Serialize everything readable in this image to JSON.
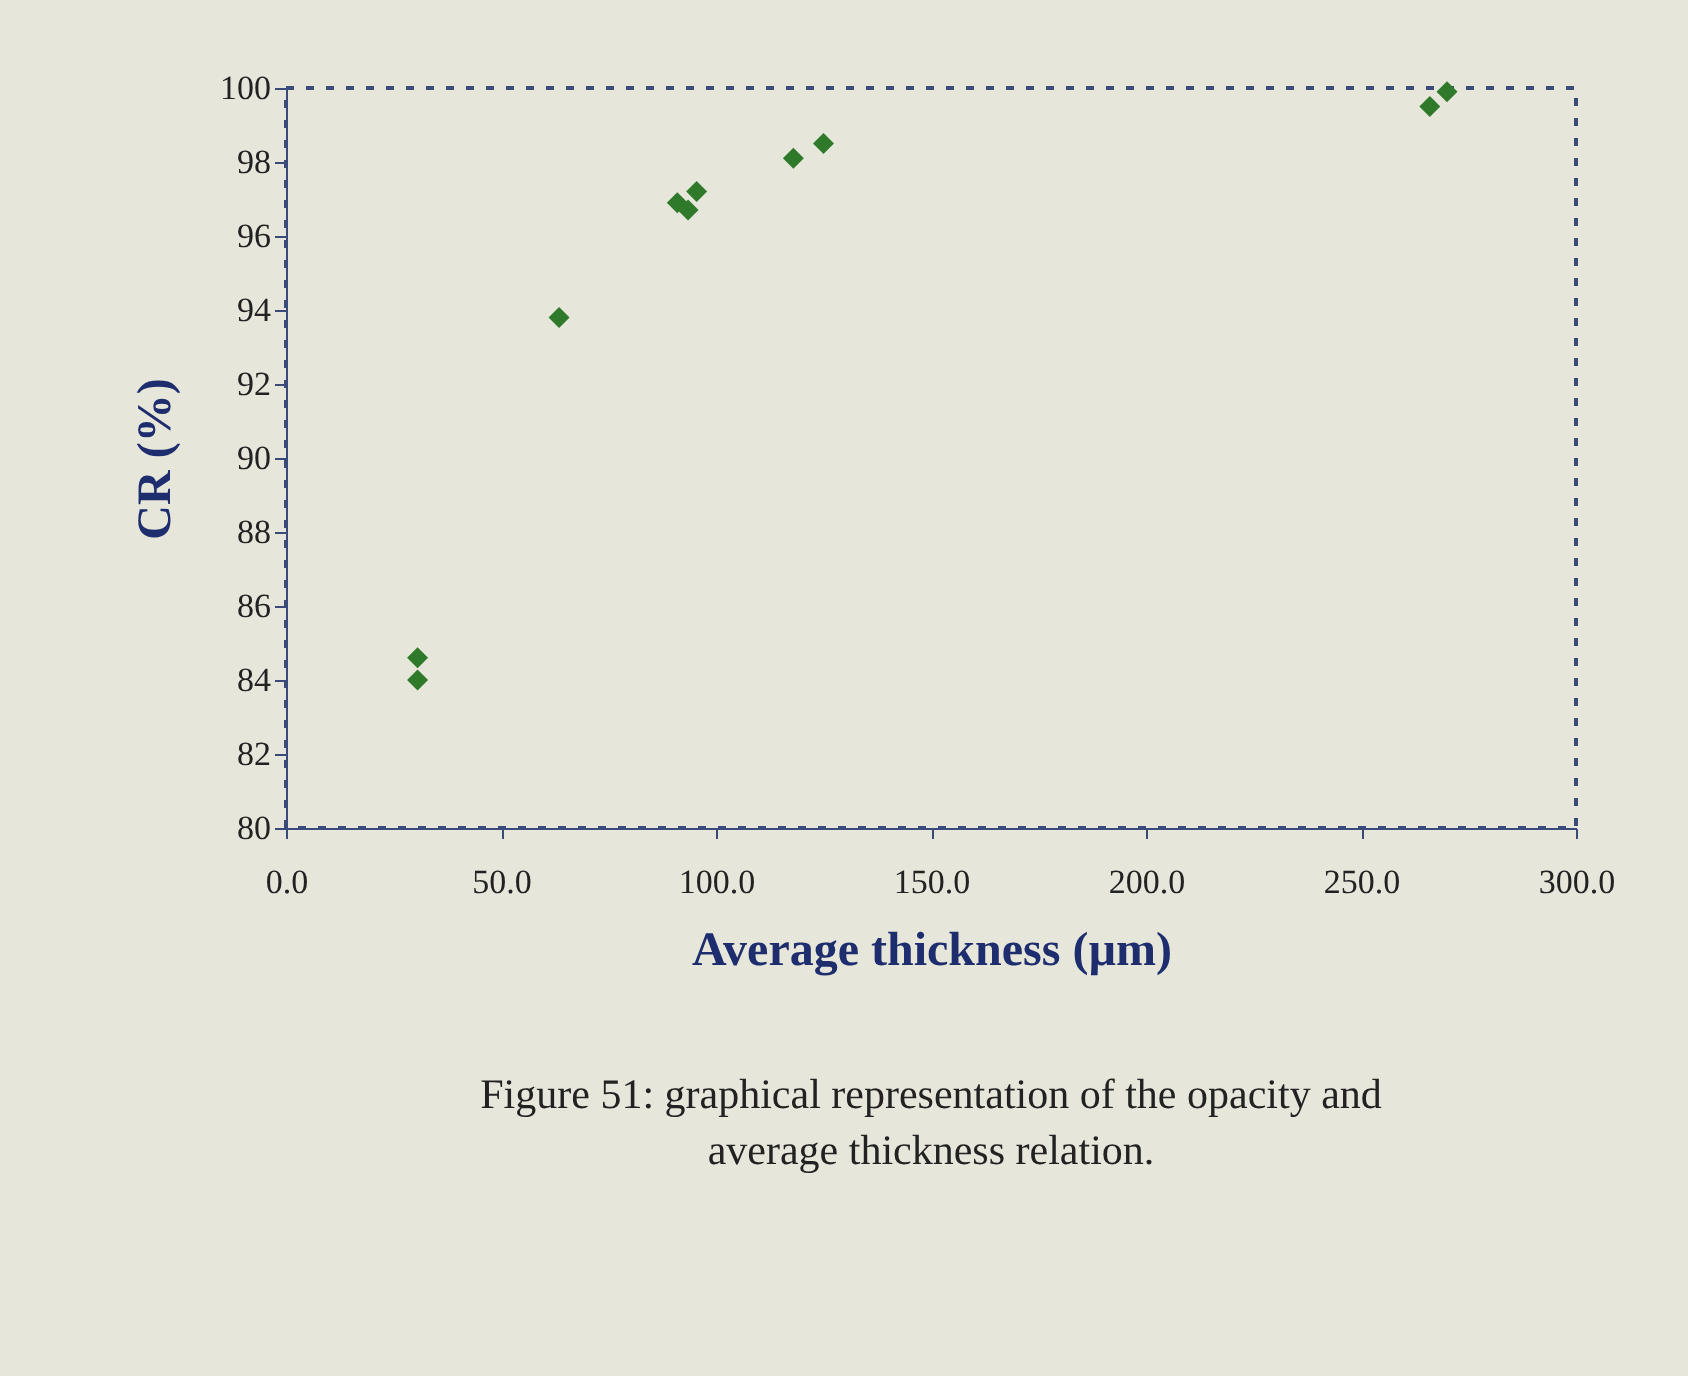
{
  "chart_data": {
    "type": "scatter",
    "title": "Figure 51: graphical representation of the opacity and average thickness relation.",
    "xlabel": "Average thickness (µm)",
    "ylabel": "CR (%)",
    "x": [
      30.6,
      30.6,
      63.5,
      91,
      93.5,
      95.5,
      118,
      125,
      266,
      270
    ],
    "series": [
      {
        "color": "#2f7a2a",
        "values": [
          84.6,
          84.0,
          93.8,
          96.9,
          96.7,
          97.2,
          98.1,
          98.5,
          99.5,
          99.9
        ]
      }
    ],
    "xlim": [
      0,
      300
    ],
    "xticks": [
      {
        "value": 0,
        "label": "0.0"
      },
      {
        "value": 50,
        "label": "50.0"
      },
      {
        "value": 100,
        "label": "100.0"
      },
      {
        "value": 150,
        "label": "150.0"
      },
      {
        "value": 200,
        "label": "200.0"
      },
      {
        "value": 250,
        "label": "250.0"
      },
      {
        "value": 300,
        "label": "300.0"
      }
    ],
    "ylim": [
      80,
      100
    ],
    "yticks": [
      80,
      82,
      84,
      86,
      88,
      90,
      92,
      94,
      96,
      98,
      100
    ],
    "marker": "diamond",
    "grid": false
  }
}
